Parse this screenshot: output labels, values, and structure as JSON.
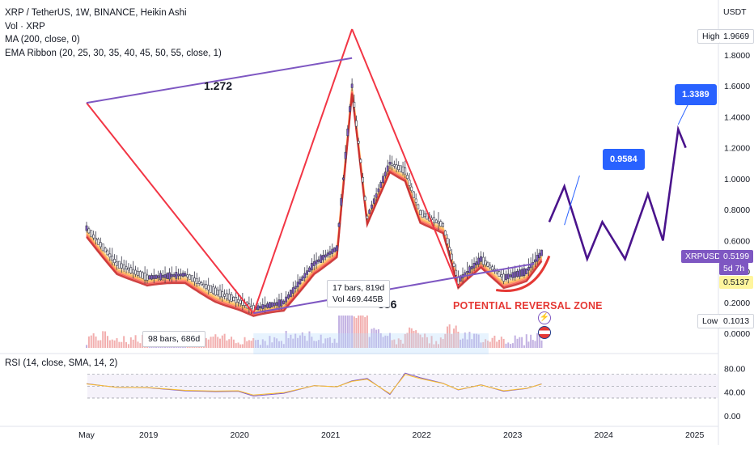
{
  "header": {
    "symbol_line": "XRP / TetherUS, 1W, BINANCE, Heikin Ashi",
    "indicators": [
      "Vol · XRP",
      "MA (200, close, 0)",
      "EMA Ribbon (20, 25, 30, 35, 40, 45, 50, 55, close, 1)"
    ],
    "currency": "USDT"
  },
  "rsi_legend": "RSI (14, close, SMA, 14, 2)",
  "tags": {
    "high_label": "High",
    "high_value": "1.9669",
    "low_label": "Low",
    "low_value": "0.1013",
    "ticker": "XRPUSDT",
    "price": "0.5199",
    "countdown": "5d 7h",
    "ma_value": "0.5137"
  },
  "annotations": {
    "fib_1": "1.272",
    "fib_2": "386",
    "target_1": "0.9584",
    "target_2": "1.3389",
    "reversal_zone": "POTENTIAL REVERSAL ZONE",
    "box1_line1": "17 bars, 819d",
    "box1_line2": "Vol 469.445B",
    "box2": "98 bars, 686d"
  },
  "colors": {
    "bull": "#7e57c2",
    "pattern_red": "#f23645",
    "pattern_purple": "#7e57c2",
    "target_blue": "#2962ff"
  },
  "chart_data": {
    "type": "line",
    "title": "XRP / TetherUS, 1W, BINANCE, Heikin Ashi",
    "x": [
      "2018-05",
      "2018-09",
      "2019-01",
      "2019-06",
      "2019-10",
      "2020-01",
      "2020-03",
      "2020-07",
      "2020-11",
      "2021-02",
      "2021-04",
      "2021-06",
      "2021-09",
      "2021-11",
      "2022-01",
      "2022-04",
      "2022-06",
      "2022-09",
      "2022-12",
      "2023-03",
      "2023-05"
    ],
    "series": [
      {
        "name": "XRP price (Heikin Ashi close)",
        "values": [
          0.68,
          0.45,
          0.36,
          0.38,
          0.27,
          0.21,
          0.16,
          0.2,
          0.45,
          0.55,
          1.6,
          0.75,
          1.1,
          1.05,
          0.78,
          0.7,
          0.34,
          0.48,
          0.36,
          0.4,
          0.5199
        ]
      }
    ],
    "projection": {
      "name": "Projected path",
      "points": [
        [
          "2023-06",
          0.72
        ],
        [
          "2023-08",
          0.95
        ],
        [
          "2023-11",
          0.48
        ],
        [
          "2024-01",
          0.72
        ],
        [
          "2024-04",
          0.48
        ],
        [
          "2024-07",
          0.9
        ],
        [
          "2024-09",
          0.6
        ],
        [
          "2024-11",
          1.32
        ],
        [
          "2024-12",
          1.2
        ]
      ]
    },
    "price_axis": {
      "ticks": [
        "1.9669",
        "1.8000",
        "1.6000",
        "1.4000",
        "1.2000",
        "1.0000",
        "0.8000",
        "0.6000",
        "0.4000",
        "0.2000",
        "0.0000"
      ],
      "range": [
        0,
        2.0
      ]
    },
    "time_axis": {
      "ticks": [
        "May",
        "2019",
        "2020",
        "2021",
        "2022",
        "2023",
        "2024",
        "2025"
      ]
    },
    "rsi": {
      "ticks": [
        "80.00",
        "40.00",
        "0.00"
      ],
      "range": [
        0,
        100
      ],
      "overbought": 70,
      "oversold": 30
    },
    "ylabel": "USDT",
    "legend": "top-left"
  }
}
